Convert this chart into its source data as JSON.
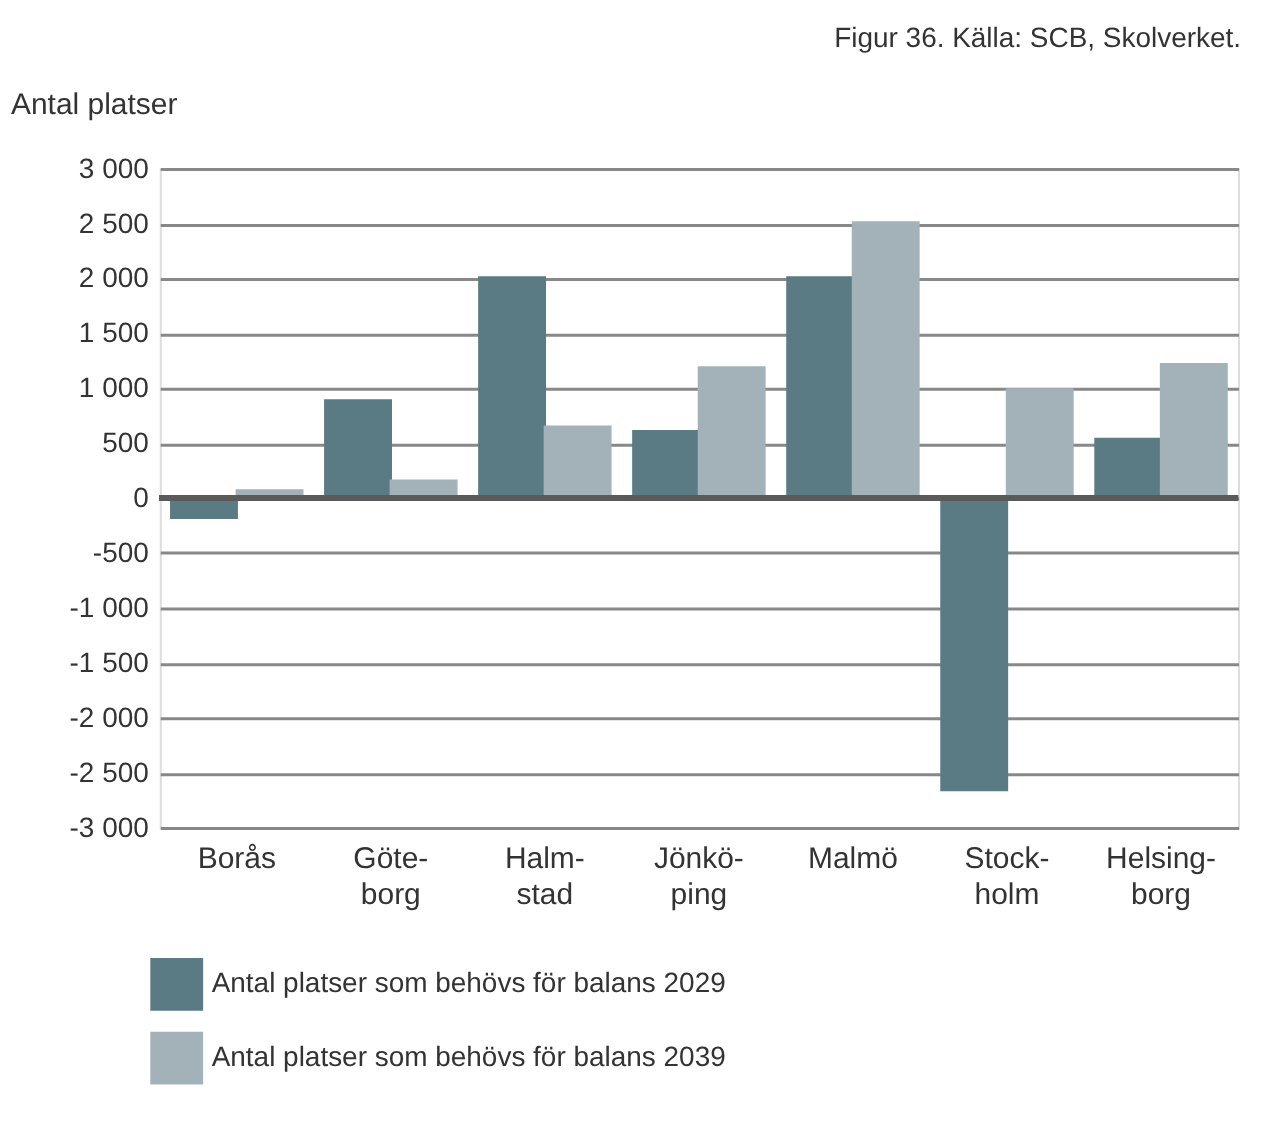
{
  "chart_data": {
    "type": "bar",
    "ylabel": "Antal platser",
    "annotations": [
      "Figur 36. Källa: SCB, Skolverket."
    ],
    "categories": [
      "Borås",
      "Göte-\nborg",
      "Halm-\nstad",
      "Jönkö-\nping",
      "Malmö",
      "Stock-\nholm",
      "Helsing-\nborg"
    ],
    "series": [
      {
        "name": "Antal platser som behövs för balans 2029",
        "color": "#5a7b84",
        "values": [
          -190,
          900,
          2020,
          620,
          2020,
          -2670,
          550
        ]
      },
      {
        "name": "Antal platser som behövs för balans 2039",
        "color": "#a3b1b8",
        "values": [
          80,
          170,
          660,
          1200,
          2520,
          1000,
          1230
        ]
      }
    ],
    "ylim": [
      -3000,
      3000
    ],
    "yticks": [
      {
        "value": -3000,
        "label": "-3 000"
      },
      {
        "value": -2500,
        "label": "-2 500"
      },
      {
        "value": -2000,
        "label": "-2 000"
      },
      {
        "value": -1500,
        "label": "-1 500"
      },
      {
        "value": -1000,
        "label": "-1 000"
      },
      {
        "value": -500,
        "label": "-500"
      },
      {
        "value": 0,
        "label": "0"
      },
      {
        "value": 500,
        "label": "500"
      },
      {
        "value": 1000,
        "label": "1 000"
      },
      {
        "value": 1500,
        "label": "1 500"
      },
      {
        "value": 2000,
        "label": "2 000"
      },
      {
        "value": 2500,
        "label": "2 500"
      },
      {
        "value": 3000,
        "label": "3 000"
      }
    ],
    "ref_lines": [
      {
        "axis": "y",
        "value": 0,
        "color": "#5a5a5a"
      }
    ],
    "grid": "y",
    "legend": "bottom left"
  }
}
